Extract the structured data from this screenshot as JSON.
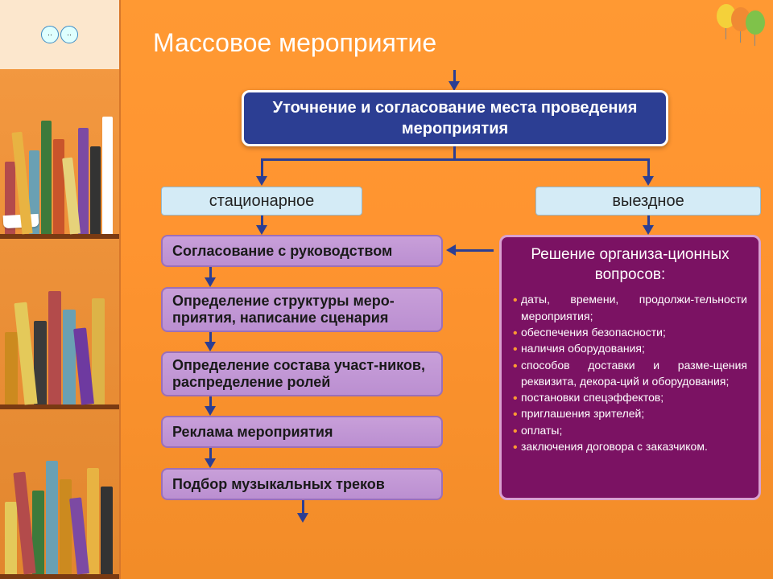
{
  "title": "Массовое мероприятие",
  "top_box": "Уточнение и согласование места проведения мероприятия",
  "cat_left": "стационарное",
  "cat_right": "выездное",
  "steps": {
    "s1": "Согласование с руководством",
    "s2": "Определение структуры меро-приятия, написание сценария",
    "s3": "Определение состава участ-ников, распределение ролей",
    "s4": "Реклама мероприятия",
    "s5": "Подбор музыкальных треков"
  },
  "right": {
    "header": "Решение организа-ционных вопросов:",
    "items": [
      "даты, времени, продолжи-тельности мероприятия;",
      "обеспечения безопасности;",
      "наличия оборудования;",
      "способов доставки и разме-щения реквизита, декора-ций и оборудования;",
      "постановки спецэффектов;",
      "приглашения зрителей;",
      "оплаты;",
      "заключения договора с заказчиком."
    ]
  },
  "colors": {
    "top_box_bg": "#2c3e93",
    "cat_bg": "#d4ebf6",
    "step_bg": "#bb8fd1",
    "right_bg": "#7b1263",
    "arrow": "#2c3e93",
    "slide_bg": "#ff9933"
  },
  "books": {
    "shelf1": [
      "#b34b4b",
      "#e8b342",
      "#6aa0b3",
      "#3d7a3b",
      "#c9542b",
      "#e6d27a",
      "#7c4aa3",
      "#333333",
      "#ffffff"
    ],
    "shelf2": [
      "#cc8a1f",
      "#e4c95a",
      "#3b3b3b",
      "#b34b4b",
      "#6aa0b3",
      "#6e3aa0",
      "#ddb347"
    ],
    "shelf3": [
      "#e4c95a",
      "#b34b4b",
      "#3d7a3b",
      "#6aa0b3",
      "#cc8a1f",
      "#7c4aa3",
      "#e8b342",
      "#333333"
    ]
  },
  "balloons": [
    "#f4d13a",
    "#f08a33",
    "#7fc24a"
  ]
}
